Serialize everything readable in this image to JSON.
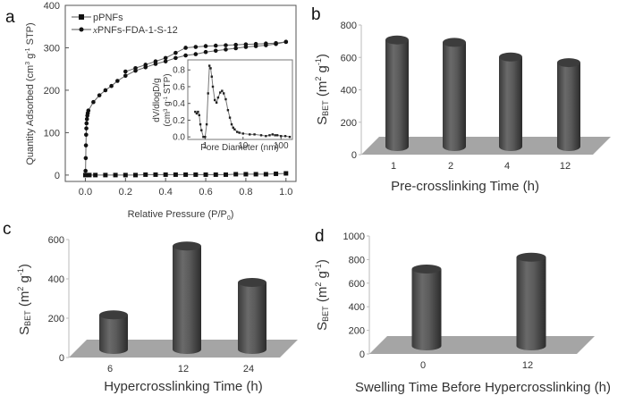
{
  "figure": {
    "panel_labels": [
      "a",
      "b",
      "c",
      "d"
    ]
  },
  "chart_data": [
    {
      "panel": "a",
      "type": "line",
      "title": "",
      "xlabel": "Relative Pressure (P/P0)",
      "ylabel": "Quantity Adsorbed (cm3 g-1 STP)",
      "xlim": [
        -0.1,
        1.05
      ],
      "ylim": [
        -15,
        400
      ],
      "xticks": [
        "0.0",
        "0.2",
        "0.4",
        "0.6",
        "0.8",
        "1.0"
      ],
      "yticks": [
        "0",
        "100",
        "200",
        "300",
        "400"
      ],
      "legend": {
        "position": "top-left",
        "entries": [
          "pPNFs",
          "xPNFs-FDA-1-S-12"
        ]
      },
      "series": [
        {
          "name": "pPNFs",
          "marker": "square",
          "x": [
            0.0,
            0.02,
            0.05,
            0.1,
            0.15,
            0.2,
            0.25,
            0.3,
            0.35,
            0.4,
            0.45,
            0.5,
            0.55,
            0.6,
            0.65,
            0.7,
            0.75,
            0.8,
            0.85,
            0.9,
            0.95,
            1.0
          ],
          "y": [
            0,
            0,
            0,
            0,
            0,
            0,
            0,
            1,
            1,
            1,
            1,
            1,
            1,
            1,
            1,
            1,
            2,
            2,
            2,
            2,
            3,
            4
          ]
        },
        {
          "name": "xPNFs-FDA-1-S-12 (adsorption)",
          "marker": "circle",
          "x": [
            0.001,
            0.002,
            0.003,
            0.004,
            0.005,
            0.006,
            0.008,
            0.01,
            0.012,
            0.015,
            0.04,
            0.07,
            0.1,
            0.13,
            0.16,
            0.2,
            0.25,
            0.3,
            0.35,
            0.4,
            0.45,
            0.5,
            0.55,
            0.6,
            0.65,
            0.7,
            0.75,
            0.8,
            0.85,
            0.9,
            0.95,
            1.0
          ],
          "y": [
            10,
            40,
            70,
            95,
            110,
            122,
            132,
            140,
            146,
            152,
            172,
            188,
            200,
            210,
            222,
            234,
            246,
            254,
            262,
            268,
            276,
            282,
            285,
            290,
            293,
            296,
            299,
            302,
            304,
            306,
            309,
            314
          ]
        },
        {
          "name": "xPNFs-FDA-1-S-12 (desorption)",
          "marker": "circle",
          "x": [
            1.0,
            0.95,
            0.9,
            0.85,
            0.8,
            0.75,
            0.7,
            0.65,
            0.6,
            0.55,
            0.5,
            0.45,
            0.4,
            0.35,
            0.3,
            0.25,
            0.2
          ],
          "y": [
            314,
            311,
            310,
            309,
            308,
            307,
            306,
            305,
            304,
            302,
            300,
            288,
            276,
            268,
            260,
            252,
            244
          ]
        }
      ],
      "inset": {
        "type": "line",
        "xlabel": "Pore Diameter (nm)",
        "ylabel": "dV/dlogD/g (cm3 g-1 STP)",
        "xscale": "log",
        "xlim": [
          0.35,
          200
        ],
        "ylim": [
          -0.03,
          0.92
        ],
        "xticks": [
          "1",
          "10",
          "100"
        ],
        "yticks": [
          "0.0",
          "0.2",
          "0.4",
          "0.6",
          "0.8"
        ],
        "x": [
          0.55,
          0.6,
          0.65,
          0.7,
          0.75,
          0.8,
          0.9,
          1.0,
          1.1,
          1.2,
          1.3,
          1.4,
          1.5,
          1.6,
          1.8,
          2.0,
          2.2,
          2.5,
          2.8,
          3.1,
          3.5,
          4.0,
          4.5,
          5.0,
          5.5,
          6.0,
          7.0,
          8.0,
          10,
          15,
          20,
          30,
          40,
          50,
          60,
          70,
          80,
          100,
          130,
          170
        ],
        "y": [
          0.3,
          0.28,
          0.3,
          0.26,
          0.15,
          0.08,
          0.0,
          0.0,
          0.15,
          0.52,
          0.85,
          0.82,
          0.72,
          0.6,
          0.44,
          0.41,
          0.47,
          0.53,
          0.55,
          0.52,
          0.45,
          0.32,
          0.23,
          0.15,
          0.11,
          0.09,
          0.06,
          0.05,
          0.04,
          0.03,
          0.03,
          0.02,
          0.01,
          0.02,
          0.03,
          0.02,
          0.02,
          0.01,
          0.01,
          0.0
        ]
      }
    },
    {
      "panel": "b",
      "type": "bar",
      "style": "3d-cylinder",
      "title": "",
      "xlabel": "Pre-crosslinking Time (h)",
      "ylabel": "SBET (m2 g-1)",
      "ylim": [
        0,
        800
      ],
      "yticks": [
        "0",
        "200",
        "400",
        "600",
        "800"
      ],
      "categories": [
        "1",
        "2",
        "4",
        "12"
      ],
      "values": [
        730,
        715,
        625,
        590
      ]
    },
    {
      "panel": "c",
      "type": "bar",
      "style": "3d-cylinder",
      "title": "",
      "xlabel": "Hypercrosslinking Time (h)",
      "ylabel": "SBET (m2 g-1)",
      "ylim": [
        0,
        600
      ],
      "yticks": [
        "0",
        "200",
        "400",
        "600"
      ],
      "categories": [
        "6",
        "12",
        "24"
      ],
      "values": [
        235,
        585,
        400
      ]
    },
    {
      "panel": "d",
      "type": "bar",
      "style": "3d-cylinder",
      "title": "",
      "xlabel": "Swelling Time Before Hypercrosslinking (h)",
      "ylabel": "SBET (m2 g-1)",
      "ylim": [
        0,
        1000
      ],
      "yticks": [
        "0",
        "200",
        "400",
        "600",
        "800",
        "1000"
      ],
      "categories": [
        "0",
        "12"
      ],
      "values": [
        750,
        850
      ]
    }
  ]
}
